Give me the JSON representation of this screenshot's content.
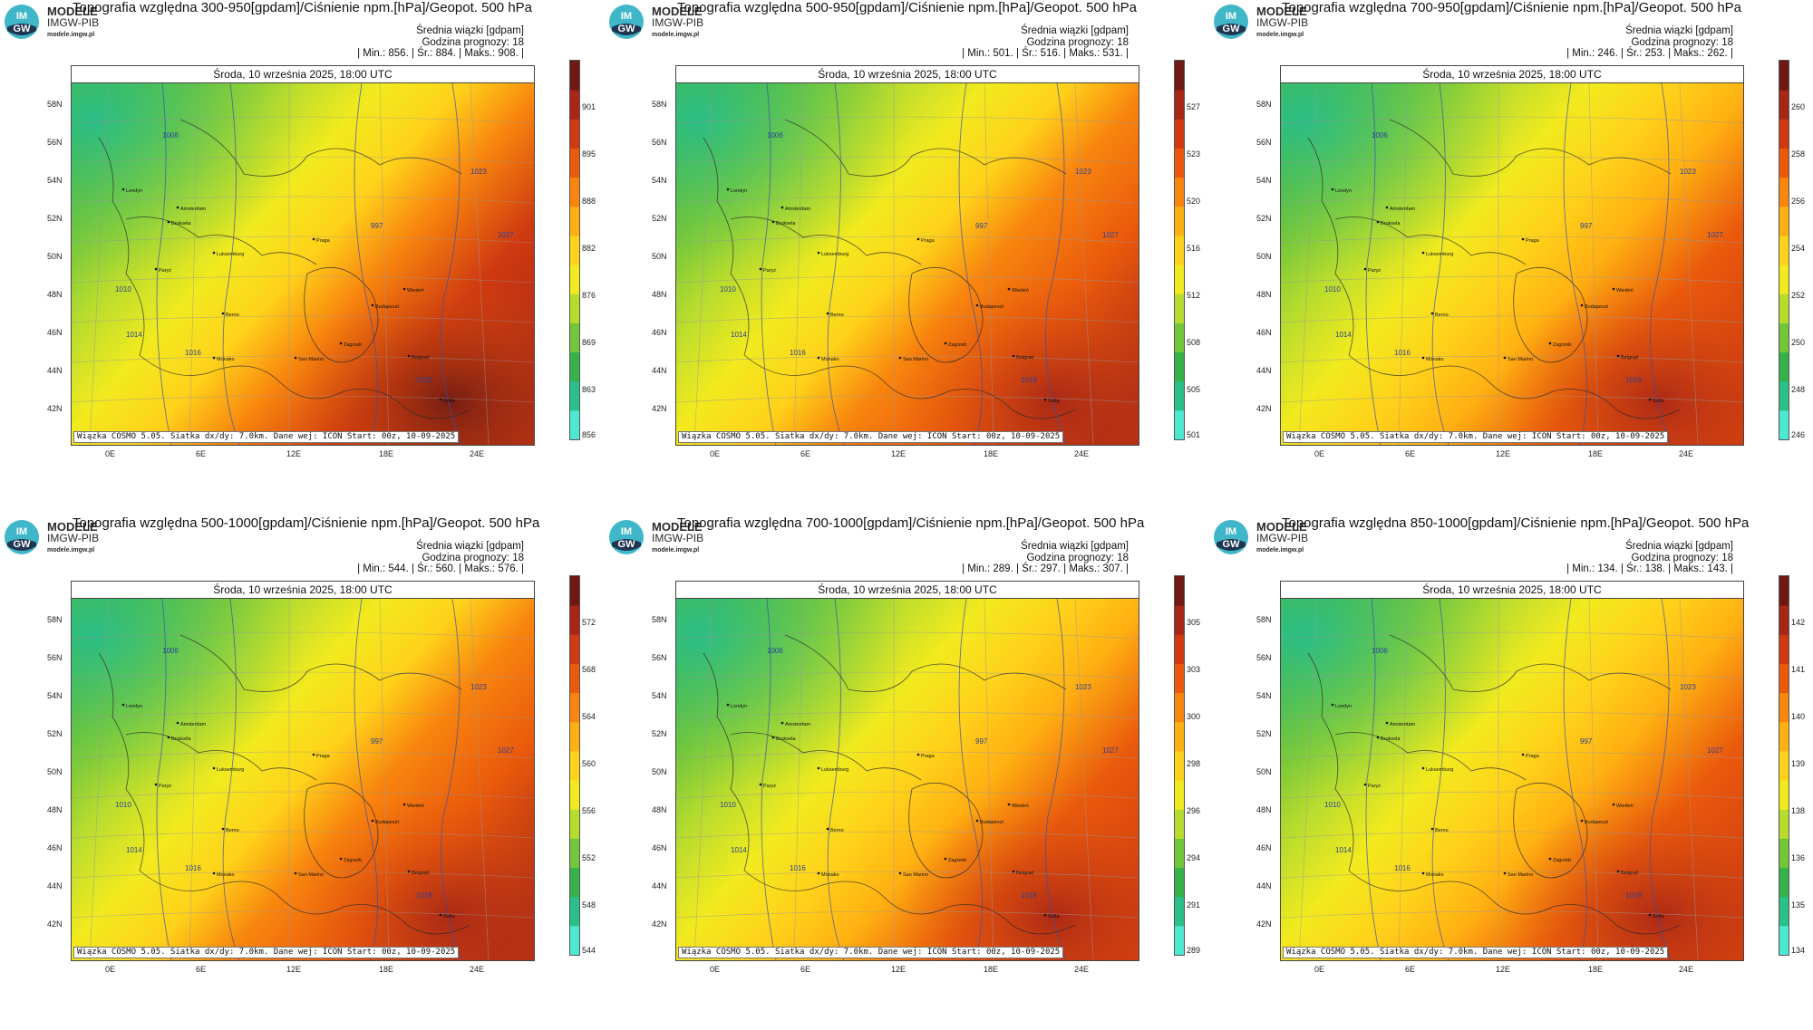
{
  "brand": {
    "name": "MODELE",
    "org": "IMGW-PIB",
    "url": "modele.imgw.pl",
    "logo_text": [
      "IM",
      "GW"
    ]
  },
  "common": {
    "date_line": "Środa, 10 września 2025, 18:00 UTC",
    "stat_label": "Średnia wiązki [gdpam]",
    "forecast_hour_label": "Godzina prognozy: 18",
    "footer": "Wiązka COSMO 5.05. Siatka dx/dy: 7.0km. Dane wej: ICON Start: 00z, 10-09-2025",
    "lat_labels": [
      "58N",
      "56N",
      "54N",
      "52N",
      "50N",
      "48N",
      "46N",
      "44N",
      "42N"
    ],
    "lon_labels": [
      "0E",
      "6E",
      "12E",
      "18E",
      "24E"
    ]
  },
  "map": {
    "color_scale": [
      "#4ee8d0",
      "#2bbf8a",
      "#35b24a",
      "#72c63a",
      "#b8dc2e",
      "#f2ea1e",
      "#ffd21a",
      "#ffb012",
      "#f8850e",
      "#ea5a0c",
      "#cf3a10",
      "#a82616",
      "#6e1a12"
    ],
    "city_labels": [
      "Paryż",
      "Luksemburg",
      "Praga",
      "Berno",
      "Monako",
      "San Marino",
      "Zagrzeb",
      "Belgrad",
      "Budapeszt",
      "Wiedeń",
      "Sofia",
      "Bruksela",
      "Londyn",
      "Amsterdam"
    ],
    "isobar_labels": [
      "1006",
      "1010",
      "1014",
      "1016",
      "997",
      "1023",
      "1027",
      "1019"
    ]
  },
  "panels": [
    {
      "title": "Topografia względna 300-950[gpdam]/Ciśnienie npm.[hPa]/Geopot. 500 hPa",
      "stats": "| Min.:   856. | Śr.:   884. | Maks.:   908. |",
      "cb_ticks": [
        "901",
        "895",
        "888",
        "882",
        "876",
        "869",
        "863",
        "856"
      ],
      "warmth": 0.85
    },
    {
      "title": "Topografia względna 500-950[gpdam]/Ciśnienie npm.[hPa]/Geopot. 500 hPa",
      "stats": "| Min.:   501. | Śr.:   516. | Maks.:   531. |",
      "cb_ticks": [
        "527",
        "523",
        "520",
        "516",
        "512",
        "508",
        "505",
        "501"
      ],
      "warmth": 0.8
    },
    {
      "title": "Topografia względna 700-950[gpdam]/Ciśnienie npm.[hPa]/Geopot. 500 hPa",
      "stats": "| Min.:   246. | Śr.:   253. | Maks.:   262. |",
      "cb_ticks": [
        "260",
        "258",
        "256",
        "254",
        "252",
        "250",
        "248",
        "246"
      ],
      "warmth": 0.6
    },
    {
      "title": "Topografia względna 500-1000[gpdam]/Ciśnienie npm.[hPa]/Geopot. 500 hPa",
      "stats": "| Min.:   544. | Śr.:   560. | Maks.:   576. |",
      "cb_ticks": [
        "572",
        "568",
        "564",
        "560",
        "556",
        "552",
        "548",
        "544"
      ],
      "warmth": 0.8
    },
    {
      "title": "Topografia względna 700-1000[gpdam]/Ciśnienie npm.[hPa]/Geopot. 500 hPa",
      "stats": "| Min.:   289. | Śr.:   297. | Maks.:   307. |",
      "cb_ticks": [
        "305",
        "303",
        "300",
        "298",
        "296",
        "294",
        "291",
        "289"
      ],
      "warmth": 0.55
    },
    {
      "title": "Topografia względna 850-1000[gpdam]/Ciśnienie npm.[hPa]/Geopot. 500 hPa",
      "stats": "| Min.:   134. | Śr.:   138. | Maks.:   143. |",
      "cb_ticks": [
        "142",
        "141",
        "140",
        "139",
        "138",
        "136",
        "135",
        "134"
      ],
      "warmth": 0.5
    }
  ]
}
